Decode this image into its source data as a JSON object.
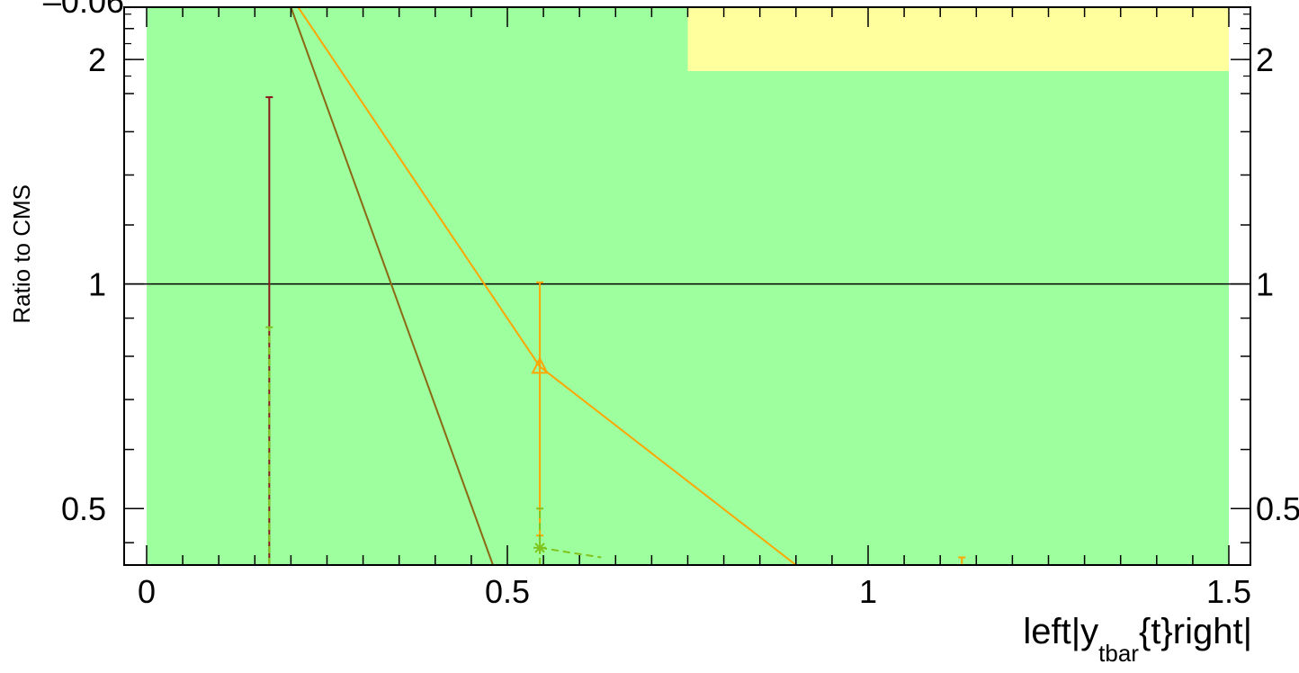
{
  "chart_data": {
    "type": "line",
    "title": "",
    "xlabel": "left|y",
    "xlabel_sub": "tbar",
    "xlabel_tail": "{t}right|",
    "ylabel": "Ratio to CMS",
    "xlim": [
      0,
      1.5
    ],
    "ylim": [
      0.42,
      2.35
    ],
    "y_scale": "log",
    "top_clipped_label": "–0.06",
    "x_ticks": [
      {
        "value": 0,
        "label": "0"
      },
      {
        "value": 0.5,
        "label": "0.5"
      },
      {
        "value": 1,
        "label": "1"
      },
      {
        "value": 1.5,
        "label": "1.5"
      }
    ],
    "y_ticks": [
      {
        "value": 0.5,
        "label": "0.5"
      },
      {
        "value": 1,
        "label": "1"
      },
      {
        "value": 2,
        "label": "2"
      }
    ],
    "y_ticks_right": [
      {
        "value": 0.5,
        "label": "0.5"
      },
      {
        "value": 1,
        "label": "1"
      },
      {
        "value": 2,
        "label": "2"
      }
    ],
    "bands": [
      {
        "x0": 0.0,
        "x1": 0.75,
        "y0": 0.42,
        "y1": 2.35,
        "color": "#9dff9d"
      },
      {
        "x0": 0.75,
        "x1": 1.5,
        "y0": 0.42,
        "y1": 1.93,
        "color": "#9dff9d"
      },
      {
        "x0": 0.75,
        "x1": 1.5,
        "y0": 1.93,
        "y1": 2.35,
        "color": "#ffff9d"
      }
    ],
    "reference_line": 1.0,
    "series": [
      {
        "color": "#8b6914",
        "style": "solid",
        "points": [
          [
            0.2,
            2.35
          ],
          [
            0.48,
            0.42
          ]
        ]
      },
      {
        "color": "#ffa500",
        "style": "solid",
        "marker": "triangle",
        "points": [
          [
            0.21,
            2.35
          ],
          [
            0.545,
            0.775
          ],
          [
            0.9,
            0.42
          ]
        ],
        "errors": [
          {
            "x": 0.545,
            "low": 0.46,
            "high": 1.005
          }
        ]
      },
      {
        "color": "#8b1a1a",
        "style": "solid",
        "points": [],
        "errors": [
          {
            "x": 0.17,
            "low": 0.42,
            "high": 1.78
          }
        ]
      },
      {
        "color": "#7fc31c",
        "style": "dashed",
        "marker": "star",
        "points": [
          [
            0.545,
            0.443
          ],
          [
            0.63,
            0.43
          ]
        ],
        "errors": [
          {
            "x": 0.545,
            "low": 0.42,
            "high": 0.5
          },
          {
            "x": 0.17,
            "low": 0.42,
            "high": 0.875
          }
        ]
      },
      {
        "color": "#ffa500",
        "style": "solid",
        "points": [],
        "errors": [
          {
            "x": 1.13,
            "low": 0.42,
            "high": 0.43
          }
        ]
      }
    ]
  }
}
